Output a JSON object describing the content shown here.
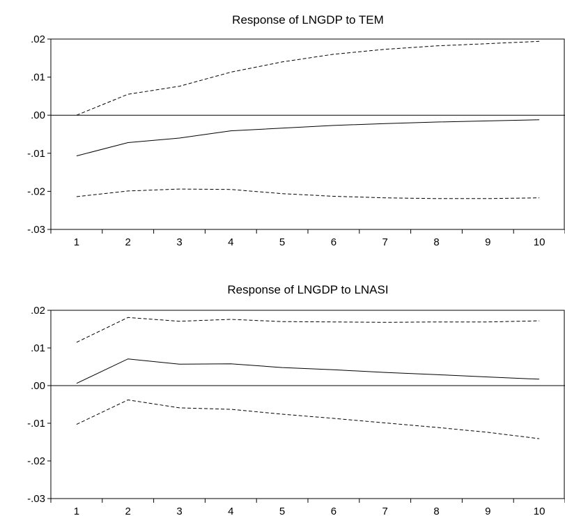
{
  "chart_data": [
    {
      "type": "line",
      "title": "Response of LNGDP to TEM",
      "categories": [
        "1",
        "2",
        "3",
        "4",
        "5",
        "6",
        "7",
        "8",
        "9",
        "10"
      ],
      "ylim": [
        -0.03,
        0.02
      ],
      "y_ticks": [
        ".02",
        ".01",
        ".00",
        "-.01",
        "-.02",
        "-.03"
      ],
      "y_tick_values": [
        0.02,
        0.01,
        0.0,
        -0.01,
        -0.02,
        -0.03
      ],
      "zero_line": true,
      "grid": false,
      "series": [
        {
          "style": "solid",
          "values": [
            -0.0107,
            -0.0072,
            -0.006,
            -0.0041,
            -0.0034,
            -0.0027,
            -0.0022,
            -0.0018,
            -0.0015,
            -0.0012
          ]
        },
        {
          "style": "dashed",
          "values": [
            0.0,
            0.0055,
            0.0076,
            0.0113,
            0.014,
            0.016,
            0.0173,
            0.0182,
            0.0188,
            0.0194
          ]
        },
        {
          "style": "dashed",
          "values": [
            -0.0214,
            -0.0199,
            -0.0194,
            -0.0195,
            -0.0206,
            -0.0213,
            -0.0217,
            -0.0219,
            -0.0219,
            -0.0217
          ]
        }
      ]
    },
    {
      "type": "line",
      "title": "Response of LNGDP to LNASI",
      "categories": [
        "1",
        "2",
        "3",
        "4",
        "5",
        "6",
        "7",
        "8",
        "9",
        "10"
      ],
      "ylim": [
        -0.03,
        0.02
      ],
      "y_ticks": [
        ".02",
        ".01",
        ".00",
        "-.01",
        "-.02",
        "-.03"
      ],
      "y_tick_values": [
        0.02,
        0.01,
        0.0,
        -0.01,
        -0.02,
        -0.03
      ],
      "zero_line": true,
      "grid": false,
      "series": [
        {
          "style": "solid",
          "values": [
            0.0006,
            0.0071,
            0.0057,
            0.0058,
            0.0048,
            0.0042,
            0.0035,
            0.0029,
            0.0023,
            0.0017
          ]
        },
        {
          "style": "dashed",
          "values": [
            0.0115,
            0.0181,
            0.0171,
            0.0176,
            0.017,
            0.0169,
            0.0168,
            0.0169,
            0.0169,
            0.0172
          ]
        },
        {
          "style": "dashed",
          "values": [
            -0.0103,
            -0.0038,
            -0.0059,
            -0.0063,
            -0.0076,
            -0.0087,
            -0.0099,
            -0.0111,
            -0.0124,
            -0.0141
          ]
        }
      ]
    }
  ]
}
